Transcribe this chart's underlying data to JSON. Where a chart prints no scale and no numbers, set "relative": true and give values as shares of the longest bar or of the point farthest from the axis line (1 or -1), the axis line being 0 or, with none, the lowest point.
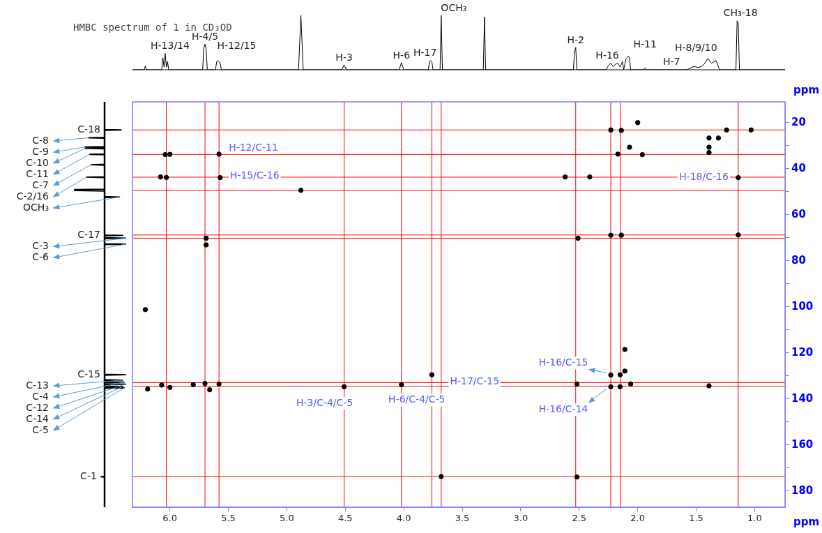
{
  "chart_data": [
    {
      "type": "line",
      "relative": true,
      "title": "HMBC spectrum of 1 in CD₃OD",
      "tick_labels": false,
      "color": "#000000",
      "xlim": [
        6.32,
        0.74
      ],
      "x": [
        6.32,
        6.22,
        6.21,
        6.2,
        6.07,
        6.06,
        6.05,
        6.04,
        6.03,
        6.02,
        6.01,
        5.72,
        5.71,
        5.7,
        5.69,
        5.68,
        5.61,
        5.6,
        5.59,
        5.58,
        5.57,
        5.56,
        4.9,
        4.88,
        4.86,
        4.53,
        4.51,
        4.49,
        4.04,
        4.02,
        4.0,
        3.79,
        3.78,
        3.77,
        3.76,
        3.75,
        3.69,
        3.68,
        3.67,
        3.32,
        3.31,
        3.3,
        2.55,
        2.54,
        2.53,
        2.52,
        2.27,
        2.25,
        2.23,
        2.21,
        2.19,
        2.17,
        2.15,
        2.13,
        2.12,
        2.1,
        2.08,
        2.07,
        2.06,
        1.95,
        1.94,
        1.93,
        1.58,
        1.52,
        1.48,
        1.44,
        1.4,
        1.37,
        1.33,
        1.3,
        1.16,
        1.15,
        1.14,
        1.13,
        0.74
      ],
      "values": [
        0,
        0,
        0.07,
        0,
        0,
        0.22,
        0.05,
        0.3,
        0.05,
        0.15,
        0,
        0,
        0.4,
        0.47,
        0.38,
        0,
        0,
        0.15,
        0.17,
        0.15,
        0.12,
        0,
        0,
        1.0,
        0,
        0,
        0.09,
        0,
        0,
        0.13,
        0,
        0,
        0.15,
        0.17,
        0.15,
        0,
        0,
        1.0,
        0,
        0,
        0.97,
        0,
        0,
        0.33,
        0.41,
        0,
        0,
        0.08,
        0.12,
        0.06,
        0.1,
        0.12,
        0.05,
        0.15,
        0,
        0.2,
        0.25,
        0.22,
        0,
        0,
        0.03,
        0,
        0,
        0.06,
        0.04,
        0.08,
        0.21,
        0.12,
        0.17,
        0,
        0,
        0.9,
        0.85,
        0,
        0
      ],
      "annotations": [
        {
          "text": "H-13/14",
          "x": 6.04,
          "y": 0.3
        },
        {
          "text": "H-4/5",
          "x": 5.7,
          "y": 0.47
        },
        {
          "text": "H-12/15",
          "x": 5.59,
          "y": 0.17
        },
        {
          "text": "H-3",
          "x": 4.51,
          "y": 0.09
        },
        {
          "text": "H-6",
          "x": 4.02,
          "y": 0.13
        },
        {
          "text": "H-17",
          "x": 3.77,
          "y": 0.17
        },
        {
          "text": "OCH₃",
          "x": 3.68,
          "y": 1.0
        },
        {
          "text": "H-2",
          "x": 2.53,
          "y": 0.41
        },
        {
          "text": "H-16",
          "x": 2.23,
          "y": 0.12
        },
        {
          "text": "H-11",
          "x": 2.08,
          "y": 0.25
        },
        {
          "text": "H-7",
          "x": 1.52,
          "y": 0.06
        },
        {
          "text": "H-8/9/10",
          "x": 1.4,
          "y": 0.21
        },
        {
          "text": "CH₃-18",
          "x": 1.15,
          "y": 0.9
        }
      ]
    },
    {
      "type": "scatter",
      "color": "#000000",
      "marker": "circle",
      "xlabel": "ppm",
      "ylabel": "ppm",
      "xlim": [
        6.32,
        0.74
      ],
      "ylim": [
        187,
        11
      ],
      "xticks": [
        {
          "value": 6,
          "label": "6.0"
        },
        5.5,
        {
          "value": 5,
          "label": "5.0"
        },
        4.5,
        {
          "value": 4,
          "label": "4.0"
        },
        3.5,
        {
          "value": 3,
          "label": "3.0"
        },
        2.5,
        {
          "value": 2,
          "label": "2.0"
        },
        1.5,
        {
          "value": 1,
          "label": "1.0"
        }
      ],
      "yticks": [
        20,
        {
          "value": 30,
          "label": null
        },
        40,
        {
          "value": 50,
          "label": null
        },
        60,
        {
          "value": 70,
          "label": null
        },
        80,
        {
          "value": 90,
          "label": null
        },
        100,
        {
          "value": 110,
          "label": null
        },
        120,
        {
          "value": 130,
          "label": null
        },
        140,
        {
          "value": 150,
          "label": null
        },
        160,
        {
          "value": 170,
          "label": null
        },
        180
      ],
      "x": [
        2.23,
        2.14,
        2.0,
        2.07,
        2.17,
        1.96,
        1.39,
        1.39,
        1.39,
        1.31,
        1.24,
        1.03,
        1.14,
        2.62,
        2.41,
        2.51,
        2.23,
        2.14,
        1.14,
        5.58,
        5.57,
        6.08,
        6.03,
        6.0,
        6.04,
        5.69,
        5.69,
        4.88,
        5.58,
        5.7,
        5.66,
        5.8,
        6.19,
        6.07,
        6.0,
        4.51,
        4.02,
        3.76,
        3.68,
        2.52,
        2.52,
        2.23,
        2.15,
        2.23,
        2.15,
        2.11,
        2.06,
        2.11,
        1.39,
        6.21
      ],
      "values": [
        23.2,
        23.4,
        20.0,
        30.7,
        33.7,
        33.9,
        26.7,
        30.7,
        33.0,
        26.7,
        23.2,
        23.2,
        43.9,
        43.6,
        43.6,
        70.2,
        68.9,
        68.9,
        68.8,
        33.7,
        43.9,
        43.6,
        43.8,
        33.8,
        33.9,
        70.2,
        73.1,
        49.4,
        133.5,
        133.3,
        136.0,
        133.8,
        135.7,
        134.0,
        135.0,
        134.7,
        133.8,
        129.5,
        173.7,
        133.5,
        173.9,
        129.6,
        129.5,
        134.7,
        134.7,
        127.9,
        133.5,
        118.5,
        134.3,
        101.2
      ],
      "ref_lines": [
        {
          "axis": "x",
          "value": 6.03,
          "color": "#ff0000"
        },
        {
          "axis": "x",
          "value": 5.7,
          "color": "#ff0000"
        },
        {
          "axis": "x",
          "value": 5.58,
          "color": "#ff0000"
        },
        {
          "axis": "x",
          "value": 4.51,
          "color": "#ff0000"
        },
        {
          "axis": "x",
          "value": 4.02,
          "color": "#ff0000"
        },
        {
          "axis": "x",
          "value": 3.76,
          "color": "#ff0000"
        },
        {
          "axis": "x",
          "value": 3.68,
          "color": "#ff0000"
        },
        {
          "axis": "x",
          "value": 2.53,
          "color": "#ff0000"
        },
        {
          "axis": "x",
          "value": 2.23,
          "color": "#ff0000"
        },
        {
          "axis": "x",
          "value": 2.15,
          "color": "#ff0000"
        },
        {
          "axis": "x",
          "value": 1.14,
          "color": "#ff0000"
        },
        {
          "axis": "y",
          "value": 23.2,
          "color": "#ff0000"
        },
        {
          "axis": "y",
          "value": 33.8,
          "color": "#ff0000"
        },
        {
          "axis": "y",
          "value": 43.7,
          "color": "#ff0000"
        },
        {
          "axis": "y",
          "value": 49.4,
          "color": "#ff0000"
        },
        {
          "axis": "y",
          "value": 68.8,
          "color": "#ff0000"
        },
        {
          "axis": "y",
          "value": 70.2,
          "color": "#ff0000"
        },
        {
          "axis": "y",
          "value": 132.9,
          "color": "#ff0000"
        },
        {
          "axis": "y",
          "value": 134.5,
          "color": "#ff0000"
        },
        {
          "axis": "y",
          "value": 173.8,
          "color": "#ff0000"
        }
      ],
      "annotations": [
        {
          "text": "H-12/C-11",
          "x": 5.58,
          "y": 33.7
        },
        {
          "text": "H-15/C-16",
          "x": 5.57,
          "y": 43.9
        },
        {
          "text": "H-18/C-16",
          "x": 1.14,
          "y": 43.9
        },
        {
          "text": "H-3/C-4/C-5",
          "x": 4.51,
          "y": 134.7
        },
        {
          "text": "H-6/C-4/C-5",
          "x": 4.02,
          "y": 133.8
        },
        {
          "text": "H-17/C-15",
          "x": 3.76,
          "y": 129.5
        },
        {
          "text": "H-16/C-15",
          "x": 2.23,
          "y": 129.6
        },
        {
          "text": "H-16/C-14",
          "x": 2.23,
          "y": 134.7
        }
      ]
    },
    {
      "type": "line",
      "orientation": "horizontal",
      "relative": true,
      "tick_labels": false,
      "color": "#000000",
      "ylim": [
        187,
        11
      ],
      "x": [
        11,
        23.0,
        23.2,
        23.4,
        26.4,
        26.6,
        26.8,
        30.4,
        30.6,
        30.8,
        31.0,
        31.2,
        31.4,
        33.6,
        33.8,
        34.0,
        38.1,
        38.3,
        38.5,
        43.5,
        43.7,
        43.9,
        48.9,
        49.1,
        49.3,
        49.5,
        49.7,
        52.1,
        52.3,
        52.5,
        68.8,
        69.0,
        69.2,
        70.0,
        70.2,
        70.4,
        72.6,
        72.8,
        73.0,
        129.3,
        129.5,
        129.7,
        131.6,
        131.8,
        132.0,
        132.5,
        132.7,
        132.9,
        133.4,
        133.6,
        133.8,
        134.4,
        134.6,
        134.8,
        135.0,
        135.2,
        135.4,
        173.6,
        173.8,
        174.0,
        187
      ],
      "values": [
        0,
        0,
        0.55,
        0,
        0,
        -0.53,
        0,
        0,
        -0.65,
        0,
        0,
        -0.65,
        0,
        0,
        -0.5,
        0,
        0,
        -0.45,
        0,
        0,
        -0.6,
        0,
        0,
        -1.0,
        -1.0,
        -1.0,
        0,
        0,
        0.5,
        0,
        0,
        0.6,
        0,
        0,
        0.7,
        0,
        0,
        0.7,
        0,
        0,
        0.7,
        0,
        0,
        0.6,
        0,
        0,
        0.65,
        0,
        0,
        0.7,
        0,
        0,
        0.6,
        0,
        0,
        0.65,
        0,
        0,
        -0.12,
        0,
        0
      ],
      "annotations": [
        {
          "text": "C-18",
          "x": 0.55,
          "y": 23.2
        },
        {
          "text": "C-8",
          "x": -0.53,
          "y": 26.6
        },
        {
          "text": "C-9",
          "x": -0.65,
          "y": 30.6
        },
        {
          "text": "C-10",
          "x": -0.65,
          "y": 31.2
        },
        {
          "text": "C-11",
          "x": -0.5,
          "y": 33.8
        },
        {
          "text": "C-7",
          "x": -0.45,
          "y": 38.3
        },
        {
          "text": "C-2/16",
          "x": -0.6,
          "y": 43.7
        },
        {
          "text": "OCH₃",
          "x": 0.5,
          "y": 52.3
        },
        {
          "text": "C-17",
          "x": 0.6,
          "y": 69.0
        },
        {
          "text": "C-3",
          "x": 0.7,
          "y": 70.2
        },
        {
          "text": "C-6",
          "x": 0.7,
          "y": 72.8
        },
        {
          "text": "C-15",
          "x": 0.7,
          "y": 129.5
        },
        {
          "text": "C-13",
          "x": 0.6,
          "y": 131.8
        },
        {
          "text": "C-4",
          "x": 0.65,
          "y": 132.7
        },
        {
          "text": "C-12",
          "x": 0.7,
          "y": 133.6
        },
        {
          "text": "C-14",
          "x": 0.6,
          "y": 134.6
        },
        {
          "text": "C-5",
          "x": 0.65,
          "y": 135.2
        },
        {
          "text": "C-1",
          "x": -0.12,
          "y": 173.8
        }
      ]
    }
  ]
}
